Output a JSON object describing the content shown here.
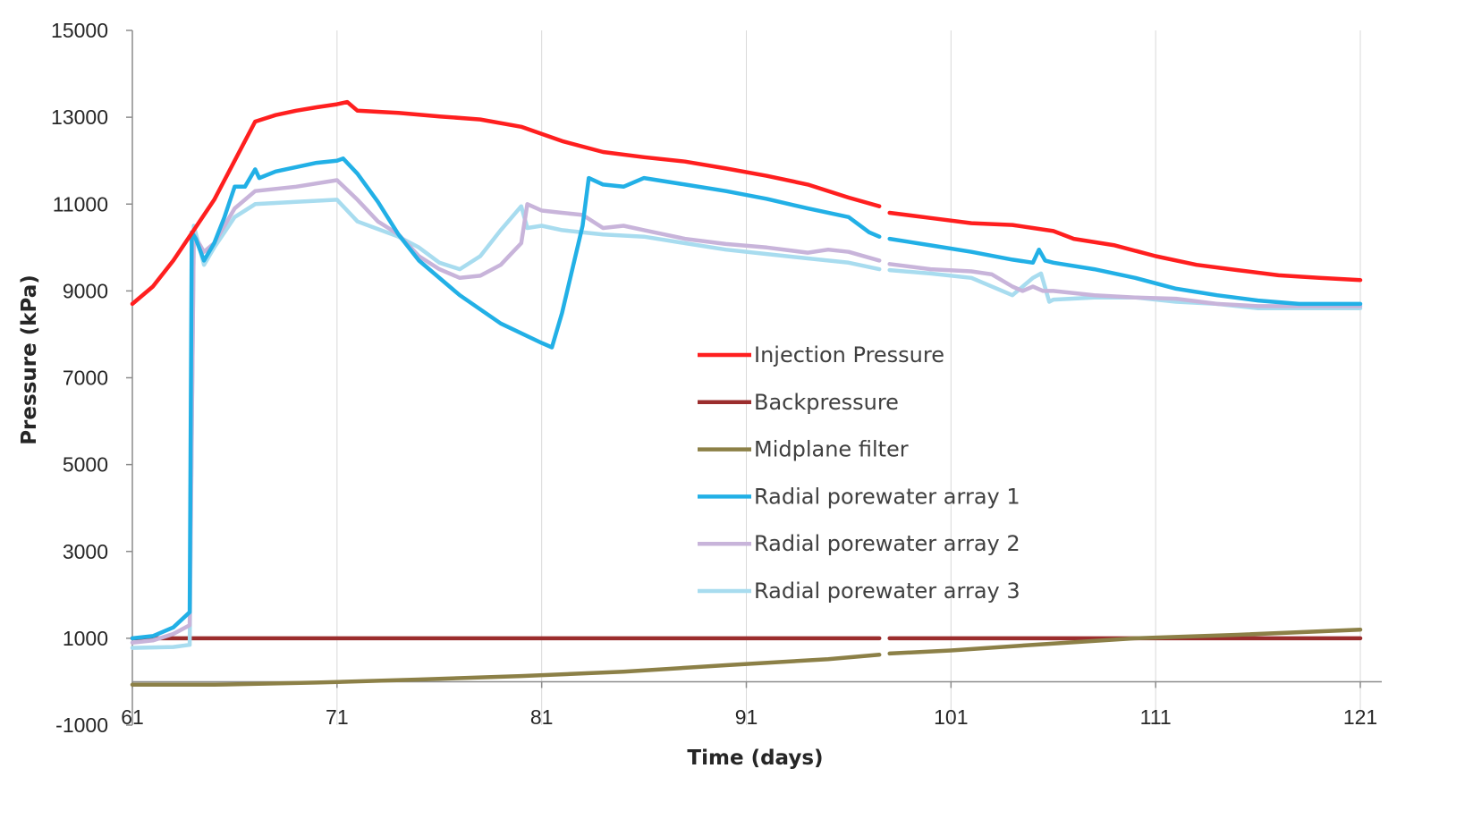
{
  "chart_data": {
    "type": "line",
    "xlabel": "Time (days)",
    "ylabel": "Pressure (kPa)",
    "xlim": [
      61,
      121
    ],
    "ylim": [
      -1000,
      15000
    ],
    "x_ticks": [
      61,
      71,
      81,
      91,
      101,
      111,
      121
    ],
    "y_ticks": [
      -1000,
      1000,
      3000,
      5000,
      7000,
      9000,
      11000,
      13000,
      15000
    ],
    "grid": "vertical",
    "legend_position": "center",
    "series": [
      {
        "name": "Injection Pressure",
        "color": "#ff1f1f",
        "segments": [
          [
            [
              61,
              8700
            ],
            [
              62,
              9100
            ],
            [
              63,
              9700
            ],
            [
              64,
              10400
            ],
            [
              65,
              11100
            ],
            [
              66,
              12000
            ],
            [
              67,
              12900
            ],
            [
              68,
              13050
            ],
            [
              69,
              13150
            ],
            [
              70,
              13230
            ],
            [
              71,
              13300
            ],
            [
              71.5,
              13350
            ],
            [
              72,
              13150
            ],
            [
              74,
              13100
            ],
            [
              76,
              13020
            ],
            [
              78,
              12950
            ],
            [
              80,
              12780
            ],
            [
              82,
              12450
            ],
            [
              84,
              12200
            ],
            [
              86,
              12080
            ],
            [
              88,
              11980
            ],
            [
              90,
              11820
            ],
            [
              92,
              11650
            ],
            [
              94,
              11450
            ],
            [
              96,
              11150
            ],
            [
              97.5,
              10950
            ]
          ],
          [
            [
              98,
              10800
            ],
            [
              100,
              10680
            ],
            [
              102,
              10560
            ],
            [
              104,
              10520
            ],
            [
              105,
              10450
            ],
            [
              106,
              10380
            ],
            [
              107,
              10200
            ],
            [
              109,
              10050
            ],
            [
              111,
              9800
            ],
            [
              113,
              9600
            ],
            [
              115,
              9480
            ],
            [
              117,
              9360
            ],
            [
              119,
              9300
            ],
            [
              121,
              9250
            ]
          ]
        ]
      },
      {
        "name": "Backpressure",
        "color": "#9b2d2d",
        "segments": [
          [
            [
              61,
              1000
            ],
            [
              97.5,
              1000
            ]
          ],
          [
            [
              98,
              1000
            ],
            [
              121,
              1000
            ]
          ]
        ]
      },
      {
        "name": "Midplane filter",
        "color": "#8c8047",
        "segments": [
          [
            [
              61,
              -70
            ],
            [
              65,
              -70
            ],
            [
              70,
              -20
            ],
            [
              75,
              50
            ],
            [
              80,
              130
            ],
            [
              85,
              230
            ],
            [
              90,
              380
            ],
            [
              95,
              520
            ],
            [
              97.5,
              620
            ]
          ],
          [
            [
              98,
              650
            ],
            [
              101,
              720
            ],
            [
              105,
              850
            ],
            [
              110,
              1000
            ],
            [
              115,
              1080
            ],
            [
              121,
              1200
            ]
          ]
        ]
      },
      {
        "name": "Radial porewater array 1",
        "color": "#22b0e6",
        "segments": [
          [
            [
              61,
              1000
            ],
            [
              62,
              1050
            ],
            [
              63,
              1250
            ],
            [
              63.8,
              1600
            ],
            [
              63.9,
              10350
            ],
            [
              64.1,
              10200
            ],
            [
              64.5,
              9700
            ],
            [
              65,
              10100
            ],
            [
              65.5,
              10700
            ],
            [
              66,
              11400
            ],
            [
              66.5,
              11400
            ],
            [
              67,
              11800
            ],
            [
              67.2,
              11600
            ],
            [
              68,
              11750
            ],
            [
              70,
              11950
            ],
            [
              71,
              12000
            ],
            [
              71.3,
              12050
            ],
            [
              72,
              11700
            ],
            [
              73,
              11050
            ],
            [
              74,
              10300
            ],
            [
              75,
              9700
            ],
            [
              77,
              8900
            ],
            [
              79,
              8250
            ],
            [
              81,
              7800
            ],
            [
              81.5,
              7700
            ],
            [
              82,
              8500
            ],
            [
              83,
              10500
            ],
            [
              83.3,
              11600
            ],
            [
              84,
              11450
            ],
            [
              85,
              11400
            ],
            [
              86,
              11600
            ],
            [
              88,
              11450
            ],
            [
              90,
              11300
            ],
            [
              92,
              11120
            ],
            [
              94,
              10900
            ],
            [
              96,
              10700
            ],
            [
              97,
              10350
            ],
            [
              97.5,
              10250
            ]
          ],
          [
            [
              98,
              10200
            ],
            [
              100,
              10050
            ],
            [
              102,
              9900
            ],
            [
              104,
              9720
            ],
            [
              105,
              9650
            ],
            [
              105.3,
              9950
            ],
            [
              105.6,
              9700
            ],
            [
              106,
              9650
            ],
            [
              108,
              9500
            ],
            [
              110,
              9300
            ],
            [
              112,
              9050
            ],
            [
              114,
              8900
            ],
            [
              116,
              8780
            ],
            [
              118,
              8700
            ],
            [
              120,
              8700
            ],
            [
              121,
              8700
            ]
          ]
        ]
      },
      {
        "name": "Radial porewater array 2",
        "color": "#c8b4da",
        "segments": [
          [
            [
              61,
              900
            ],
            [
              62,
              950
            ],
            [
              63,
              1100
            ],
            [
              63.8,
              1300
            ],
            [
              64,
              10300
            ],
            [
              64.5,
              9900
            ],
            [
              65,
              10100
            ],
            [
              66,
              10900
            ],
            [
              67,
              11300
            ],
            [
              69,
              11400
            ],
            [
              71,
              11550
            ],
            [
              72,
              11100
            ],
            [
              73,
              10600
            ],
            [
              74,
              10300
            ],
            [
              75,
              9800
            ],
            [
              76,
              9500
            ],
            [
              77,
              9300
            ],
            [
              78,
              9350
            ],
            [
              79,
              9600
            ],
            [
              79.5,
              9850
            ],
            [
              80,
              10100
            ],
            [
              80.3,
              11000
            ],
            [
              81,
              10850
            ],
            [
              82,
              10800
            ],
            [
              83,
              10750
            ],
            [
              84,
              10450
            ],
            [
              85,
              10500
            ],
            [
              86,
              10400
            ],
            [
              88,
              10200
            ],
            [
              90,
              10080
            ],
            [
              92,
              10000
            ],
            [
              94,
              9880
            ],
            [
              95,
              9950
            ],
            [
              96,
              9900
            ],
            [
              97.5,
              9700
            ]
          ],
          [
            [
              98,
              9620
            ],
            [
              100,
              9500
            ],
            [
              102,
              9450
            ],
            [
              103,
              9380
            ],
            [
              104,
              9100
            ],
            [
              104.5,
              9000
            ],
            [
              105,
              9100
            ],
            [
              105.5,
              9000
            ],
            [
              106,
              9000
            ],
            [
              108,
              8900
            ],
            [
              110,
              8850
            ],
            [
              112,
              8820
            ],
            [
              114,
              8700
            ],
            [
              116,
              8650
            ],
            [
              118,
              8650
            ],
            [
              121,
              8650
            ]
          ]
        ]
      },
      {
        "name": "Radial porewater array 3",
        "color": "#a8dcef",
        "segments": [
          [
            [
              61,
              780
            ],
            [
              62,
              790
            ],
            [
              63,
              800
            ],
            [
              63.8,
              850
            ],
            [
              64,
              10500
            ],
            [
              64.5,
              9600
            ],
            [
              65,
              10000
            ],
            [
              66,
              10700
            ],
            [
              67,
              11000
            ],
            [
              69,
              11050
            ],
            [
              71,
              11100
            ],
            [
              72,
              10600
            ],
            [
              74,
              10250
            ],
            [
              75,
              10000
            ],
            [
              76,
              9650
            ],
            [
              77,
              9500
            ],
            [
              78,
              9800
            ],
            [
              79,
              10400
            ],
            [
              80,
              10950
            ],
            [
              80.3,
              10450
            ],
            [
              81,
              10500
            ],
            [
              82,
              10400
            ],
            [
              84,
              10300
            ],
            [
              86,
              10250
            ],
            [
              88,
              10100
            ],
            [
              90,
              9950
            ],
            [
              92,
              9850
            ],
            [
              94,
              9750
            ],
            [
              96,
              9650
            ],
            [
              97.5,
              9500
            ]
          ],
          [
            [
              98,
              9480
            ],
            [
              100,
              9400
            ],
            [
              102,
              9300
            ],
            [
              104,
              8900
            ],
            [
              105,
              9300
            ],
            [
              105.4,
              9400
            ],
            [
              105.8,
              8750
            ],
            [
              106,
              8800
            ],
            [
              108,
              8850
            ],
            [
              110,
              8850
            ],
            [
              112,
              8750
            ],
            [
              114,
              8700
            ],
            [
              116,
              8600
            ],
            [
              118,
              8600
            ],
            [
              121,
              8600
            ]
          ]
        ]
      }
    ]
  }
}
